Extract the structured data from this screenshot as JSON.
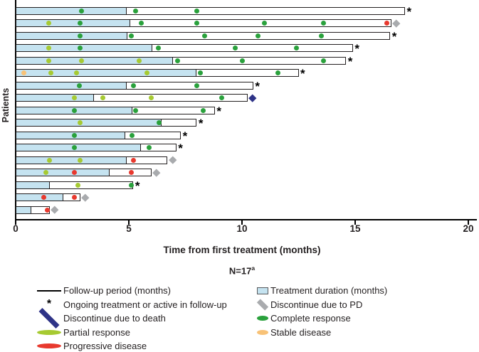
{
  "chart_data": {
    "type": "swimmer-bar",
    "title": "",
    "xlabel": "Time from first treatment (months)",
    "ylabel": "Patients",
    "n_label": "N=17",
    "n_superscript": "a",
    "xlim": [
      0,
      20
    ],
    "xticks": [
      0,
      5,
      10,
      15,
      20
    ],
    "grid": false,
    "colors": {
      "treatment_fill": "#c5e3f0",
      "bar_outline": "#231f20",
      "complete_response": "#2aa13c",
      "partial_response": "#a6ca32",
      "progressive_disease": "#e8392e",
      "stable_disease": "#f8c277",
      "death_diamond": "#2e3387",
      "pd_diamond": "#a9abae"
    },
    "event_types": {
      "CR": "Complete response",
      "PR": "Partial response",
      "PD": "Progressive disease",
      "SD": "Stable disease"
    },
    "end_markers": {
      "ongoing": "Ongoing treatment or active in follow-up",
      "death": "Discontinue due to death",
      "pd": "Discontinue due to PD"
    },
    "patients": [
      {
        "treatment": 4.9,
        "followup": 17.2,
        "end": "ongoing",
        "events": [
          {
            "m": 2.9,
            "t": "CR"
          },
          {
            "m": 5.3,
            "t": "CR"
          },
          {
            "m": 8.0,
            "t": "CR"
          }
        ]
      },
      {
        "treatment": 5.05,
        "followup": 16.6,
        "end": "pd",
        "events": [
          {
            "m": 1.45,
            "t": "PR"
          },
          {
            "m": 2.85,
            "t": "CR"
          },
          {
            "m": 5.55,
            "t": "CR"
          },
          {
            "m": 8.0,
            "t": "CR"
          },
          {
            "m": 11.0,
            "t": "CR"
          },
          {
            "m": 13.6,
            "t": "CR"
          },
          {
            "m": 16.4,
            "t": "PD"
          }
        ]
      },
      {
        "treatment": 4.95,
        "followup": 16.55,
        "end": "ongoing",
        "events": [
          {
            "m": 2.85,
            "t": "CR"
          },
          {
            "m": 5.1,
            "t": "CR"
          },
          {
            "m": 8.35,
            "t": "CR"
          },
          {
            "m": 10.7,
            "t": "CR"
          },
          {
            "m": 13.5,
            "t": "CR"
          }
        ]
      },
      {
        "treatment": 6.05,
        "followup": 14.9,
        "end": "ongoing",
        "events": [
          {
            "m": 1.45,
            "t": "PR"
          },
          {
            "m": 2.85,
            "t": "CR"
          },
          {
            "m": 6.3,
            "t": "CR"
          },
          {
            "m": 9.7,
            "t": "CR"
          },
          {
            "m": 12.4,
            "t": "CR"
          }
        ]
      },
      {
        "treatment": 6.95,
        "followup": 14.6,
        "end": "ongoing",
        "events": [
          {
            "m": 1.45,
            "t": "PR"
          },
          {
            "m": 2.9,
            "t": "PR"
          },
          {
            "m": 5.45,
            "t": "PR"
          },
          {
            "m": 7.15,
            "t": "CR"
          },
          {
            "m": 10.0,
            "t": "CR"
          },
          {
            "m": 13.6,
            "t": "CR"
          }
        ]
      },
      {
        "treatment": 8.0,
        "followup": 12.5,
        "end": "ongoing",
        "events": [
          {
            "m": 0.35,
            "t": "SD"
          },
          {
            "m": 1.55,
            "t": "PR"
          },
          {
            "m": 2.7,
            "t": "PR"
          },
          {
            "m": 5.8,
            "t": "PR"
          },
          {
            "m": 8.15,
            "t": "CR"
          },
          {
            "m": 11.6,
            "t": "CR"
          }
        ]
      },
      {
        "treatment": 4.9,
        "followup": 10.5,
        "end": "ongoing",
        "events": [
          {
            "m": 2.8,
            "t": "CR"
          },
          {
            "m": 5.2,
            "t": "CR"
          },
          {
            "m": 8.0,
            "t": "CR"
          }
        ]
      },
      {
        "treatment": 3.45,
        "followup": 10.25,
        "end": "death",
        "events": [
          {
            "m": 2.6,
            "t": "PR"
          },
          {
            "m": 3.85,
            "t": "PR"
          },
          {
            "m": 6.0,
            "t": "PR"
          },
          {
            "m": 9.1,
            "t": "CR"
          }
        ]
      },
      {
        "treatment": 5.15,
        "followup": 8.8,
        "end": "ongoing",
        "events": [
          {
            "m": 2.6,
            "t": "CR"
          },
          {
            "m": 5.3,
            "t": "CR"
          },
          {
            "m": 8.3,
            "t": "CR"
          }
        ]
      },
      {
        "treatment": 6.45,
        "followup": 8.0,
        "end": "ongoing",
        "events": [
          {
            "m": 2.85,
            "t": "PR"
          },
          {
            "m": 6.35,
            "t": "CR"
          }
        ]
      },
      {
        "treatment": 4.85,
        "followup": 7.3,
        "end": "ongoing",
        "events": [
          {
            "m": 2.6,
            "t": "CR"
          },
          {
            "m": 5.15,
            "t": "CR"
          }
        ]
      },
      {
        "treatment": 5.55,
        "followup": 7.1,
        "end": "ongoing",
        "events": [
          {
            "m": 2.6,
            "t": "CR"
          },
          {
            "m": 5.9,
            "t": "CR"
          }
        ]
      },
      {
        "treatment": 4.9,
        "followup": 6.7,
        "end": "pd",
        "events": [
          {
            "m": 1.5,
            "t": "PR"
          },
          {
            "m": 2.85,
            "t": "PR"
          },
          {
            "m": 5.2,
            "t": "PD"
          }
        ]
      },
      {
        "treatment": 4.15,
        "followup": 6.0,
        "end": "pd",
        "events": [
          {
            "m": 1.35,
            "t": "PR"
          },
          {
            "m": 2.6,
            "t": "PD"
          },
          {
            "m": 5.1,
            "t": "PD"
          }
        ]
      },
      {
        "treatment": 1.5,
        "followup": 5.2,
        "end": "ongoing",
        "events": [
          {
            "m": 2.75,
            "t": "PR"
          },
          {
            "m": 5.1,
            "t": "CR"
          }
        ]
      },
      {
        "treatment": 2.1,
        "followup": 2.85,
        "end": "pd",
        "events": [
          {
            "m": 1.25,
            "t": "PD"
          },
          {
            "m": 2.6,
            "t": "PD"
          }
        ]
      },
      {
        "treatment": 0.7,
        "followup": 1.5,
        "end": "pd",
        "events": [
          {
            "m": 1.4,
            "t": "PD"
          }
        ]
      }
    ]
  },
  "legend": {
    "left": [
      {
        "symbol": "line",
        "label": "Follow-up period (months)"
      },
      {
        "symbol": "asterisk",
        "label": "Ongoing treatment or active in follow-up"
      },
      {
        "symbol": "diamond-navy",
        "label": "Discontinue due to death"
      },
      {
        "symbol": "dot-yellowgreen",
        "label": "Partial response"
      },
      {
        "symbol": "dot-red",
        "label": "Progressive disease"
      }
    ],
    "right": [
      {
        "symbol": "square-lightblue",
        "label": "Treatment duration (months)"
      },
      {
        "symbol": "diamond-gray",
        "label": "Discontinue due to PD"
      },
      {
        "symbol": "dot-green",
        "label": "Complete response"
      },
      {
        "symbol": "dot-orange",
        "label": "Stable disease"
      }
    ]
  }
}
